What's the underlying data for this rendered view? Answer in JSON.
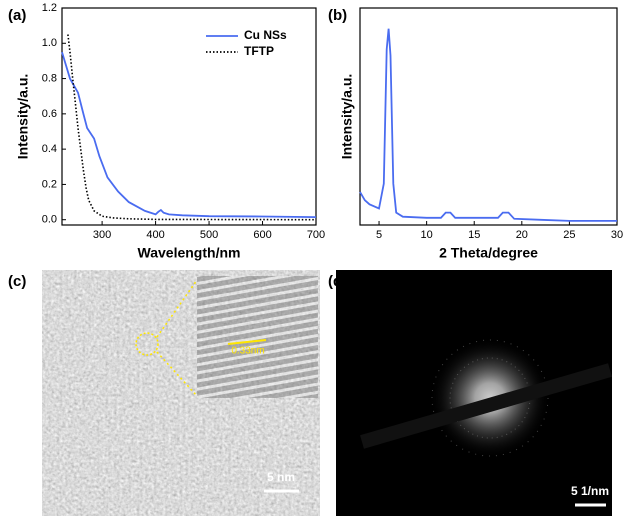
{
  "chart_data": [
    {
      "type": "line",
      "panel_label": "(a)",
      "x_label": "Wavelength/nm",
      "y_label": "Intensity/a.u.",
      "xlim": [
        225,
        700
      ],
      "ylim": [
        -0.03,
        1.2
      ],
      "xticks": [
        300,
        400,
        500,
        600,
        700
      ],
      "yticks": [
        {
          "value": 0,
          "label": "0.0"
        },
        0.2,
        0.4,
        0.6,
        0.8,
        {
          "value": 1,
          "label": "1.0"
        },
        1.2
      ],
      "legend": "upper right",
      "series": [
        {
          "name": "Cu NSs",
          "color": "#4a6cf0",
          "dash": "solid",
          "x": [
            225,
            240,
            255,
            265,
            272,
            285,
            295,
            310,
            330,
            350,
            380,
            400,
            405,
            410,
            415,
            425,
            450,
            500,
            600,
            700
          ],
          "values": [
            0.95,
            0.8,
            0.72,
            0.6,
            0.52,
            0.46,
            0.36,
            0.24,
            0.16,
            0.1,
            0.05,
            0.03,
            0.045,
            0.055,
            0.04,
            0.03,
            0.025,
            0.02,
            0.018,
            0.015
          ]
        },
        {
          "name": "TFTP",
          "color": "#000000",
          "dash": "dotted",
          "x": [
            236,
            240,
            245,
            250,
            255,
            260,
            265,
            270,
            275,
            285,
            300,
            320,
            350,
            400,
            500,
            700
          ],
          "values": [
            1.05,
            0.95,
            0.8,
            0.66,
            0.52,
            0.4,
            0.28,
            0.18,
            0.11,
            0.05,
            0.02,
            0.01,
            0.005,
            0.002,
            0.001,
            0
          ]
        }
      ]
    },
    {
      "type": "line",
      "panel_label": "(b)",
      "x_label": "2 Theta/degree",
      "y_label": "Intensity/a.u.",
      "xlim": [
        3,
        30
      ],
      "ylim": [
        0,
        1.05
      ],
      "xticks": [
        5,
        10,
        15,
        20,
        25,
        30
      ],
      "series": [
        {
          "color": "#4a6cf0",
          "dash": "solid",
          "x": [
            3,
            3.5,
            4,
            5,
            5.5,
            5.8,
            6,
            6.2,
            6.5,
            6.8,
            7.5,
            10,
            11.5,
            12,
            12.5,
            13,
            17.5,
            18,
            18.6,
            19.2,
            22,
            25,
            30
          ],
          "values": [
            0.16,
            0.12,
            0.1,
            0.08,
            0.2,
            0.85,
            0.95,
            0.82,
            0.2,
            0.06,
            0.04,
            0.035,
            0.035,
            0.06,
            0.06,
            0.035,
            0.035,
            0.06,
            0.06,
            0.03,
            0.025,
            0.02,
            0.02
          ]
        }
      ]
    }
  ],
  "images": {
    "c": {
      "panel_label": "(c)",
      "lattice_spacing": "0.33nm",
      "scale_bar": "5 nm"
    },
    "d": {
      "panel_label": "(d)",
      "scale_bar": "5 1/nm"
    }
  }
}
